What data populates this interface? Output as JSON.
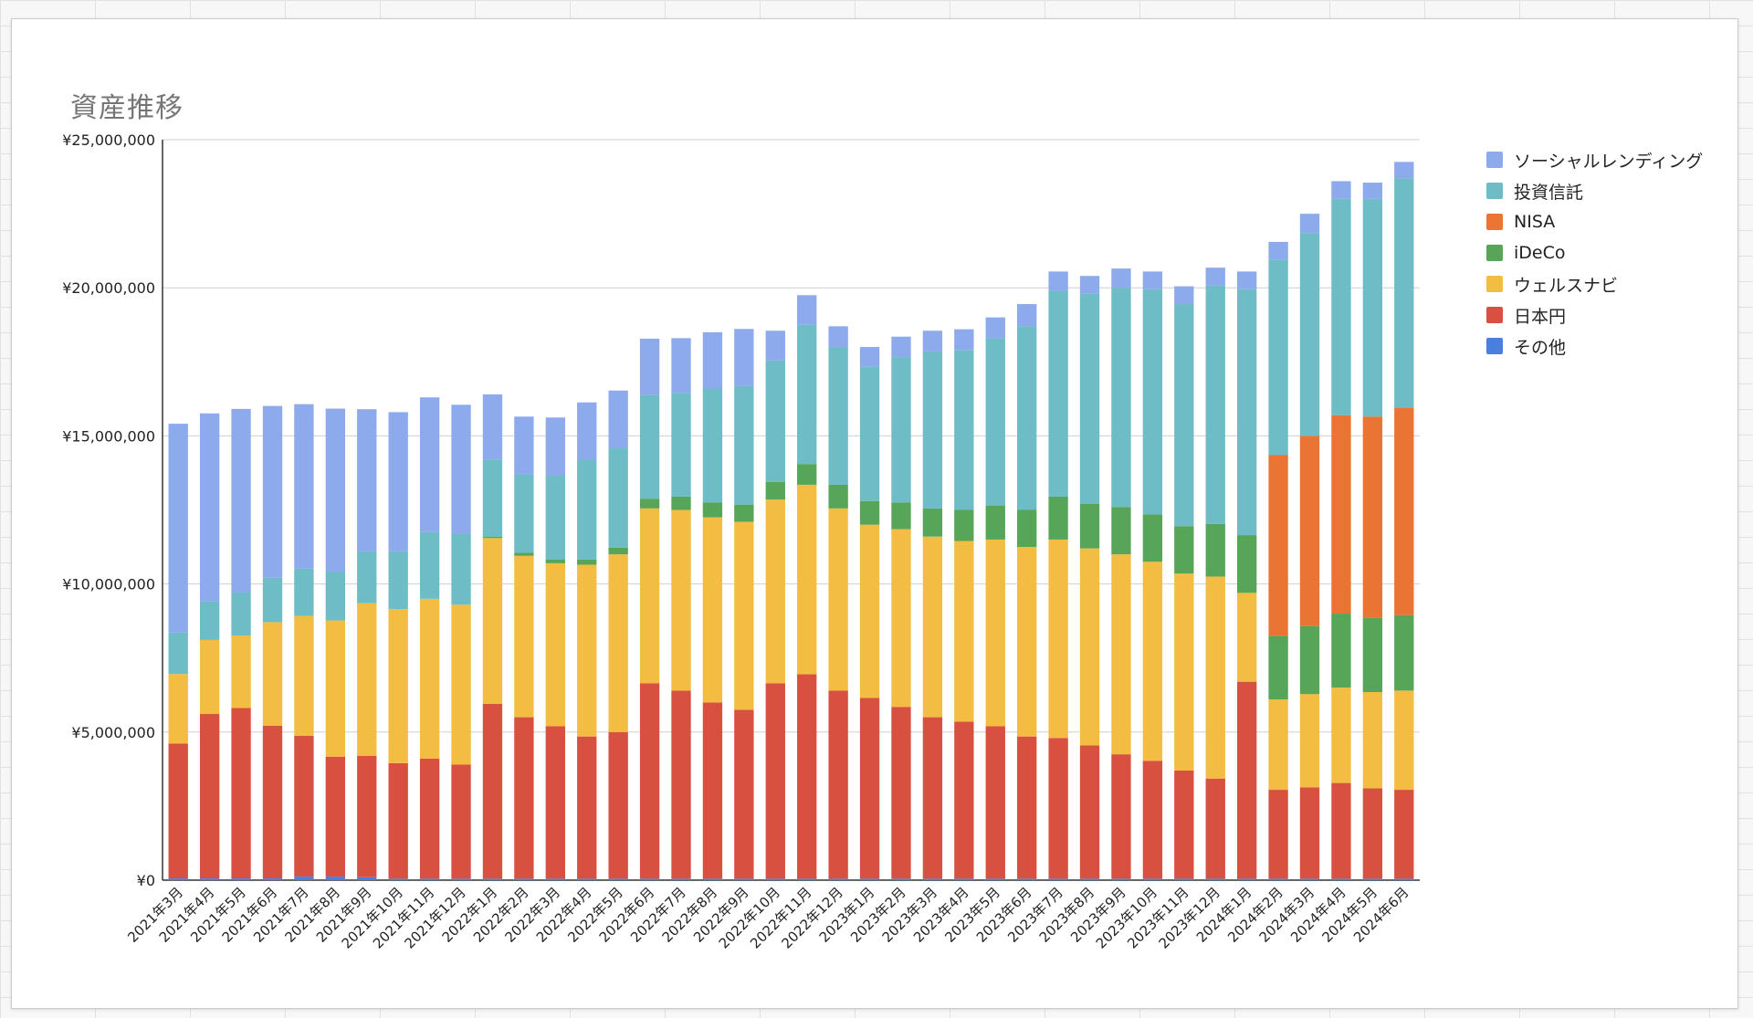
{
  "chart_data": {
    "type": "bar",
    "stacked": true,
    "title": "資産推移",
    "xlabel": "",
    "ylabel": "",
    "ylim": [
      0,
      25000000
    ],
    "yticks": [
      0,
      5000000,
      10000000,
      15000000,
      20000000,
      25000000
    ],
    "ytick_labels": [
      "¥0",
      "¥5,000,000",
      "¥10,000,000",
      "¥15,000,000",
      "¥20,000,000",
      "¥25,000,000"
    ],
    "grid": true,
    "legend_position": "right",
    "categories": [
      "2021年3月",
      "2021年4月",
      "2021年5月",
      "2021年6月",
      "2021年7月",
      "2021年8月",
      "2021年9月",
      "2021年10月",
      "2021年11月",
      "2021年12月",
      "2022年1月",
      "2022年2月",
      "2022年3月",
      "2022年4月",
      "2022年5月",
      "2022年6月",
      "2022年7月",
      "2022年8月",
      "2022年9月",
      "2022年10月",
      "2022年11月",
      "2022年12月",
      "2023年1月",
      "2023年2月",
      "2023年3月",
      "2023年4月",
      "2023年5月",
      "2023年6月",
      "2023年7月",
      "2023年8月",
      "2023年9月",
      "2023年10月",
      "2023年11月",
      "2023年12月",
      "2024年1月",
      "2024年2月",
      "2024年3月",
      "2024年4月",
      "2024年5月",
      "2024年6月"
    ],
    "series": [
      {
        "name": "その他",
        "color": "#4a7fe0",
        "values": [
          60000,
          60000,
          60000,
          60000,
          120000,
          120000,
          100000,
          50000,
          50000,
          50000,
          50000,
          50000,
          50000,
          50000,
          50000,
          50000,
          50000,
          50000,
          50000,
          50000,
          50000,
          50000,
          50000,
          50000,
          50000,
          50000,
          50000,
          50000,
          50000,
          50000,
          50000,
          50000,
          50000,
          50000,
          50000,
          50000,
          50000,
          50000,
          50000,
          50000
        ]
      },
      {
        "name": "日本円",
        "color": "#d85140",
        "values": [
          4550000,
          5550000,
          5750000,
          5150000,
          4750000,
          4050000,
          4100000,
          3900000,
          4050000,
          3850000,
          5900000,
          5450000,
          5150000,
          4800000,
          4950000,
          6600000,
          6350000,
          5950000,
          5700000,
          6600000,
          6900000,
          6350000,
          6100000,
          5800000,
          5450000,
          5300000,
          5150000,
          4800000,
          4750000,
          4500000,
          4200000,
          3980000,
          3650000,
          3380000,
          6650000,
          3000000,
          3080000,
          3230000,
          3050000,
          3000000
        ]
      },
      {
        "name": "ウェルスナビ",
        "color": "#f2bd42",
        "values": [
          2350000,
          2500000,
          2450000,
          3500000,
          4050000,
          4600000,
          5150000,
          5200000,
          5400000,
          5400000,
          5600000,
          5450000,
          5500000,
          5800000,
          6000000,
          5900000,
          6100000,
          6250000,
          6350000,
          6200000,
          6400000,
          6150000,
          5850000,
          6000000,
          6100000,
          6100000,
          6300000,
          6400000,
          6700000,
          6650000,
          6750000,
          6720000,
          6650000,
          6820000,
          3000000,
          3050000,
          3150000,
          3220000,
          3250000,
          3350000
        ]
      },
      {
        "name": "iDeCo",
        "color": "#56a559",
        "values": [
          0,
          0,
          0,
          0,
          0,
          0,
          0,
          0,
          0,
          0,
          50000,
          100000,
          120000,
          180000,
          230000,
          330000,
          450000,
          500000,
          580000,
          600000,
          700000,
          800000,
          800000,
          900000,
          950000,
          1050000,
          1150000,
          1250000,
          1450000,
          1500000,
          1600000,
          1600000,
          1600000,
          1780000,
          1950000,
          2150000,
          2300000,
          2500000,
          2500000,
          2550000
        ]
      },
      {
        "name": "NISA",
        "color": "#ea7434",
        "values": [
          0,
          0,
          0,
          0,
          0,
          0,
          0,
          0,
          0,
          0,
          0,
          0,
          0,
          0,
          0,
          0,
          0,
          0,
          0,
          0,
          0,
          0,
          0,
          0,
          0,
          0,
          0,
          0,
          0,
          0,
          0,
          0,
          0,
          0,
          0,
          6100000,
          6420000,
          6700000,
          6800000,
          7000000
        ]
      },
      {
        "name": "投資信託",
        "color": "#6ebcc5",
        "values": [
          1400000,
          1300000,
          1450000,
          1500000,
          1600000,
          1650000,
          1750000,
          1950000,
          2250000,
          2400000,
          2600000,
          2650000,
          2850000,
          3350000,
          3350000,
          3500000,
          3500000,
          3850000,
          4000000,
          4100000,
          4700000,
          4650000,
          4550000,
          4900000,
          5300000,
          5400000,
          5650000,
          6200000,
          6950000,
          7100000,
          7400000,
          7600000,
          7500000,
          8050000,
          8300000,
          6600000,
          6850000,
          7300000,
          7350000,
          7750000
        ]
      },
      {
        "name": "ソーシャルレンディング",
        "color": "#8daaec",
        "values": [
          7050000,
          6350000,
          6200000,
          5800000,
          5550000,
          5500000,
          4800000,
          4700000,
          4550000,
          4350000,
          2200000,
          1950000,
          1950000,
          1950000,
          1950000,
          1900000,
          1850000,
          1900000,
          1930000,
          1000000,
          1000000,
          700000,
          650000,
          700000,
          700000,
          700000,
          700000,
          750000,
          650000,
          600000,
          650000,
          600000,
          600000,
          600000,
          600000,
          600000,
          650000,
          600000,
          550000,
          550000
        ]
      }
    ]
  }
}
